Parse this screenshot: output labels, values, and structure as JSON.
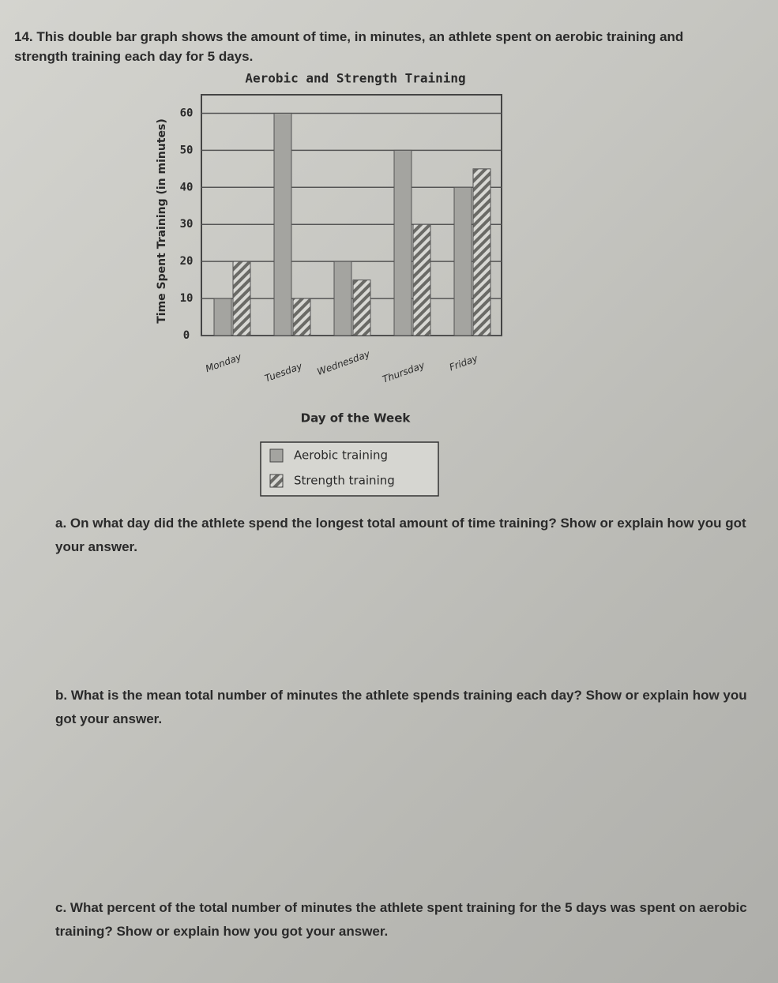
{
  "problem": {
    "number": "14.",
    "text": "This double bar graph shows the amount of time, in minutes, an athlete spent on aerobic training and strength training each day for 5 days."
  },
  "chart_data": {
    "type": "bar",
    "title": "Aerobic and Strength Training",
    "x_label": "Day of the Week",
    "y_label": "Time Spent Training (in minutes)",
    "categories": [
      "Monday",
      "Tuesday",
      "Wednesday",
      "Thursday",
      "Friday"
    ],
    "series": [
      {
        "name": "Aerobic training",
        "color": "#a4a4a0",
        "pattern": "solid",
        "values": [
          10,
          60,
          20,
          50,
          40
        ]
      },
      {
        "name": "Strength training",
        "color": "#7d7d79",
        "pattern": "hatch",
        "values": [
          20,
          10,
          15,
          30,
          45
        ]
      }
    ],
    "ylim": [
      0,
      65
    ],
    "yticks": [
      0,
      10,
      20,
      30,
      40,
      50,
      60
    ],
    "grid": true
  },
  "questions": [
    {
      "label": "a.",
      "text": "On what day did the athlete spend the longest total amount of time training?",
      "prompt": "Show or explain how you got your answer."
    },
    {
      "label": "b.",
      "text": "What is the mean total number of minutes the athlete spends training each day?",
      "prompt": "Show or explain how you got your answer."
    },
    {
      "label": "c.",
      "text": "What percent of the total number of minutes the athlete spent training for the 5 days was spent on aerobic training?",
      "prompt": "Show or explain how you got your answer."
    }
  ]
}
